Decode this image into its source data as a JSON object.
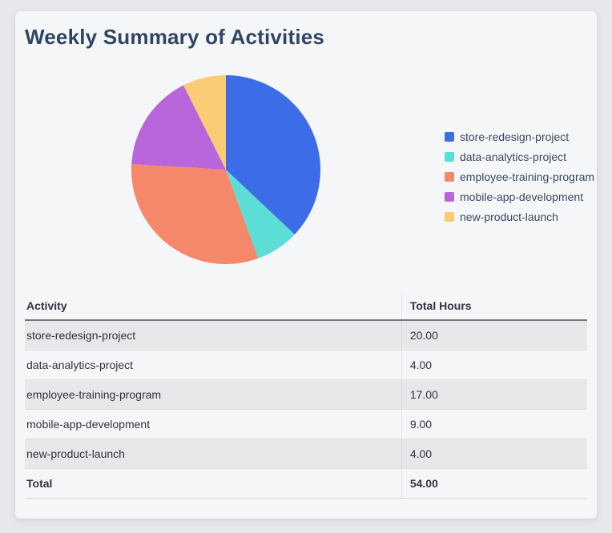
{
  "page": {
    "title": "Weekly Summary of Activities"
  },
  "chart_data": {
    "type": "pie",
    "title": "Weekly Summary of Activities",
    "labels": [
      "store-redesign-project",
      "data-analytics-project",
      "employee-training-program",
      "mobile-app-development",
      "new-product-launch"
    ],
    "values": [
      20,
      4,
      17,
      9,
      4
    ],
    "colors": [
      "#3d6ce9",
      "#5cded6",
      "#f5876a",
      "#b965dc",
      "#facc75"
    ],
    "total": 54,
    "start_angle_deg": 0,
    "direction": "clockwise",
    "legend_position": "right",
    "grid": false
  },
  "table": {
    "columns": [
      "Activity",
      "Total Hours"
    ],
    "rows": [
      {
        "activity": "store-redesign-project",
        "hours": "20.00"
      },
      {
        "activity": "data-analytics-project",
        "hours": "4.00"
      },
      {
        "activity": "employee-training-program",
        "hours": "17.00"
      },
      {
        "activity": "mobile-app-development",
        "hours": "9.00"
      },
      {
        "activity": "new-product-launch",
        "hours": "4.00"
      }
    ],
    "total_row": {
      "label": "Total",
      "hours": "54.00"
    }
  },
  "colors": {
    "page_background": "#e6e8ec",
    "card_background": "#f5f6f8",
    "title_text": "#2f4568",
    "body_text": "#31333f",
    "stripe": "#e7e8ea"
  }
}
